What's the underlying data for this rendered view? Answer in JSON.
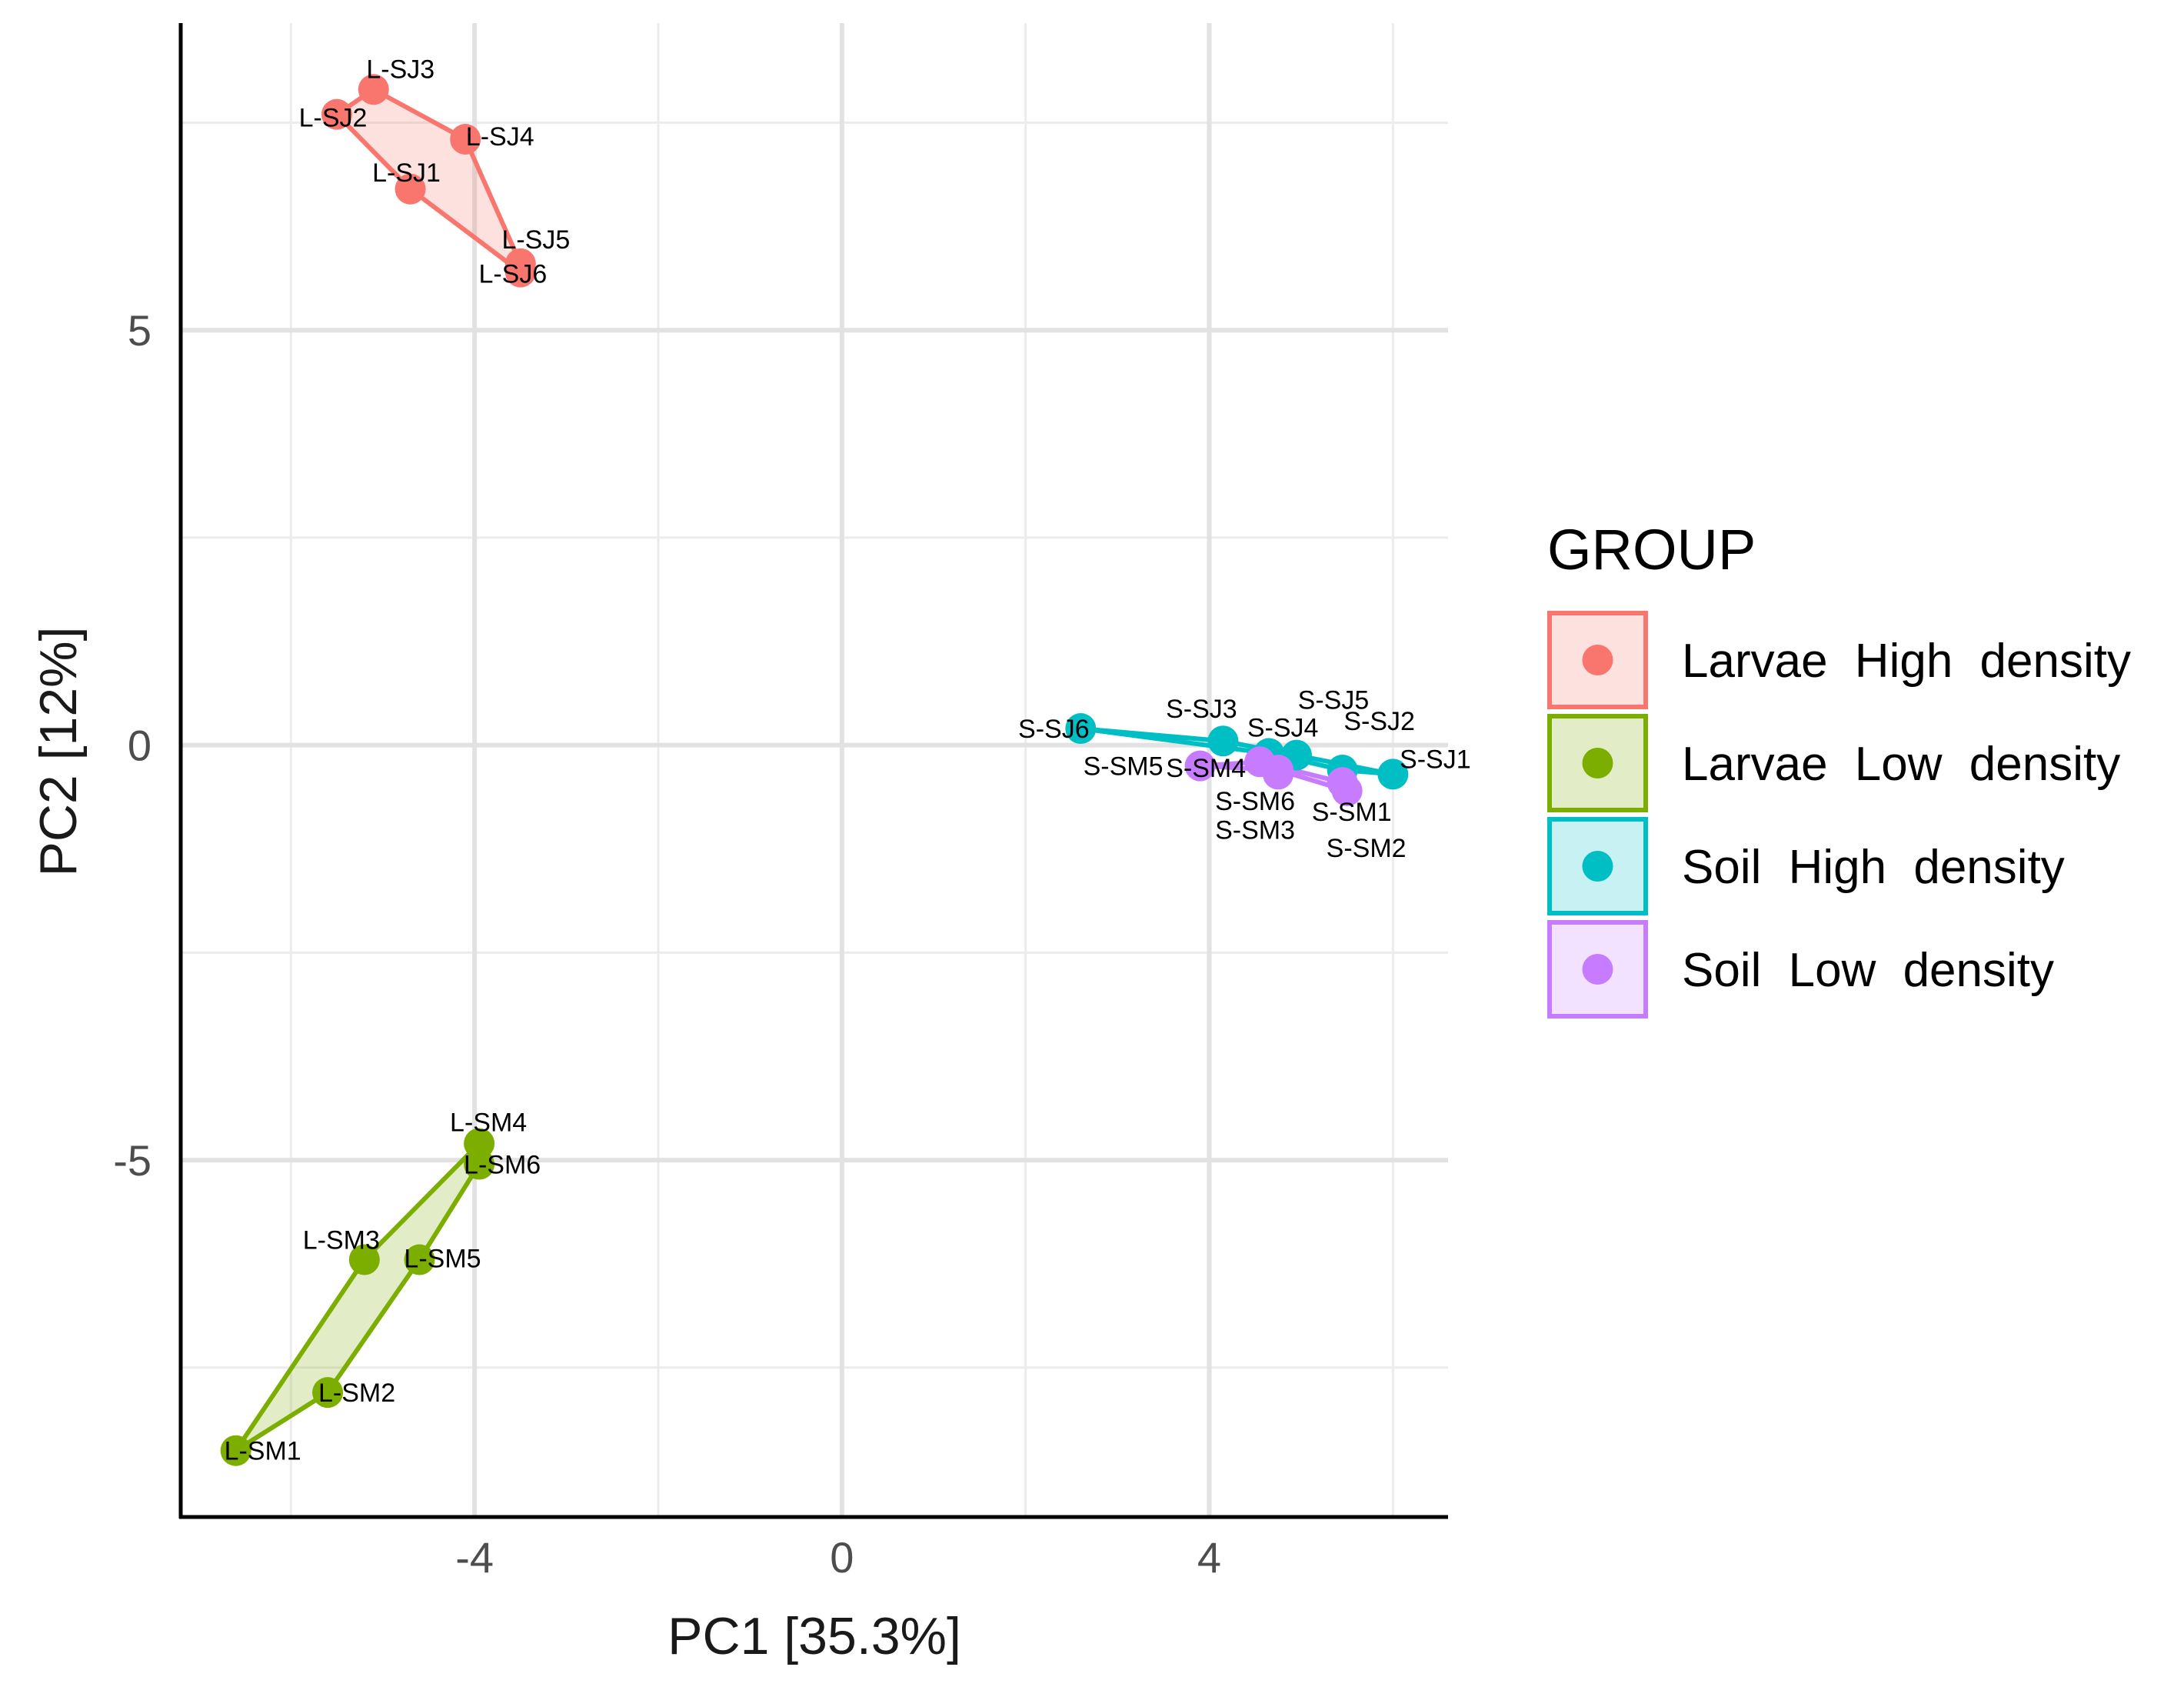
{
  "chart_data": {
    "type": "scatter",
    "xlabel": "PC1 [35.3%]",
    "ylabel": "PC2 [12%]",
    "xlim": [
      -7.2,
      6.6
    ],
    "ylim": [
      -9.3,
      8.7
    ],
    "x_ticks": [
      -4,
      0,
      4
    ],
    "x_tick_labels": [
      "-4",
      "0",
      "4"
    ],
    "y_ticks": [
      -5,
      0,
      5
    ],
    "y_tick_labels": [
      "-5",
      "0",
      "5"
    ],
    "x_minor_gridlines": [
      -6,
      -2,
      2,
      6
    ],
    "y_minor_gridlines": [
      -7.5,
      -2.5,
      2.5,
      7.5
    ],
    "grid": true,
    "legend": {
      "title": "GROUP",
      "position": "right"
    },
    "series": [
      {
        "name": "Larvae  High  density",
        "color": "#F8766D",
        "hull": [
          "L-SJ2",
          "L-SJ3",
          "L-SJ4",
          "L-SJ5",
          "L-SJ6",
          "L-SJ1"
        ],
        "points": [
          {
            "label": "L-SJ1",
            "x": -4.7,
            "y": 6.7
          },
          {
            "label": "L-SJ2",
            "x": -5.5,
            "y": 7.6
          },
          {
            "label": "L-SJ3",
            "x": -5.1,
            "y": 7.9
          },
          {
            "label": "L-SJ4",
            "x": -4.1,
            "y": 7.3
          },
          {
            "label": "L-SJ5",
            "x": -3.5,
            "y": 5.8
          },
          {
            "label": "L-SJ6",
            "x": -3.5,
            "y": 5.7
          }
        ]
      },
      {
        "name": "Larvae  Low  density",
        "color": "#7CAE00",
        "hull": [
          "L-SM1",
          "L-SM3",
          "L-SM4",
          "L-SM6",
          "L-SM5",
          "L-SM2"
        ],
        "points": [
          {
            "label": "L-SM1",
            "x": -6.6,
            "y": -8.5
          },
          {
            "label": "L-SM2",
            "x": -5.6,
            "y": -7.8
          },
          {
            "label": "L-SM3",
            "x": -5.2,
            "y": -6.2
          },
          {
            "label": "L-SM4",
            "x": -3.95,
            "y": -4.8
          },
          {
            "label": "L-SM5",
            "x": -4.6,
            "y": -6.2
          },
          {
            "label": "L-SM6",
            "x": -3.95,
            "y": -5.05
          }
        ]
      },
      {
        "name": "Soil  High  density",
        "color": "#00BFC4",
        "hull": [
          "S-SJ6",
          "S-SJ3",
          "S-SJ1",
          "S-SJ2",
          "S-SJ4"
        ],
        "points": [
          {
            "label": "S-SJ1",
            "x": 6.0,
            "y": -0.35
          },
          {
            "label": "S-SJ2",
            "x": 5.45,
            "y": -0.3
          },
          {
            "label": "S-SJ3",
            "x": 4.15,
            "y": 0.05
          },
          {
            "label": "S-SJ4",
            "x": 4.65,
            "y": -0.1
          },
          {
            "label": "S-SJ5",
            "x": 4.95,
            "y": -0.12
          },
          {
            "label": "S-SJ6",
            "x": 2.6,
            "y": 0.2
          }
        ]
      },
      {
        "name": "Soil  Low  density",
        "color": "#C77CFF",
        "hull": [
          "S-SM5",
          "S-SM4",
          "S-SM1",
          "S-SM2",
          "S-SM6"
        ],
        "points": [
          {
            "label": "S-SM1",
            "x": 5.45,
            "y": -0.45
          },
          {
            "label": "S-SM2",
            "x": 5.5,
            "y": -0.55
          },
          {
            "label": "S-SM3",
            "x": 4.75,
            "y": -0.35
          },
          {
            "label": "S-SM4",
            "x": 4.55,
            "y": -0.2
          },
          {
            "label": "S-SM5",
            "x": 3.9,
            "y": -0.25
          },
          {
            "label": "S-SM6",
            "x": 4.75,
            "y": -0.3
          }
        ]
      }
    ]
  }
}
